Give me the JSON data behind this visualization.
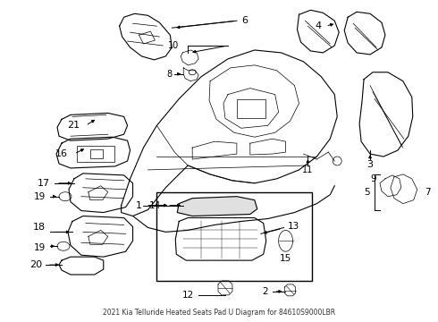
{
  "title": "2021 Kia Telluride Heated Seats Pad U Diagram for 84610S9000LBR",
  "bg_color": "#ffffff",
  "fig_width": 4.9,
  "fig_height": 3.6,
  "dpi": 100
}
